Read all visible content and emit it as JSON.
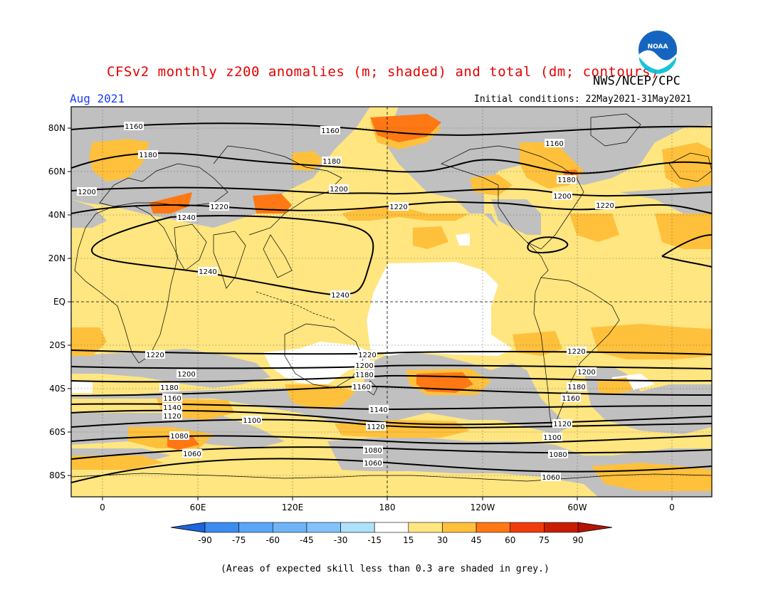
{
  "header": {
    "title": "CFSv2 monthly z200 anomalies (m; shaded) and total (dm; contours)",
    "agency": "NWS/NCEP/CPC",
    "month": "Aug 2021",
    "initial_conditions": "Initial conditions: 22May2021-31May2021"
  },
  "logo": {
    "text": "NOAA",
    "icon": "noaa-logo"
  },
  "map": {
    "projection": "equirectangular",
    "lon_range": [
      -20,
      20
    ],
    "lat_range": [
      -90,
      90
    ],
    "lat_labels": [
      "80N",
      "60N",
      "40N",
      "20N",
      "EQ",
      "20S",
      "40S",
      "60S",
      "80S"
    ],
    "lon_labels": [
      "0",
      "60E",
      "120E",
      "180",
      "120W",
      "60W",
      "0"
    ],
    "grid": true,
    "colors": {
      "grey_low_skill": "#c0c0c0",
      "white": "#ffffff",
      "yellow_15_30": "#ffe680",
      "orange_30_45": "#ffc03c",
      "orange_45_60": "#ff7814",
      "red_60_75": "#f03c0a"
    },
    "contour_labels": [
      "1160",
      "1160",
      "1160",
      "1180",
      "1180",
      "1180",
      "1200",
      "1200",
      "1200",
      "1220",
      "1220",
      "1220",
      "1240",
      "1240",
      "1240",
      "1220",
      "1220",
      "1220",
      "1200",
      "1200",
      "1200",
      "1180",
      "1180",
      "1180",
      "1160",
      "1160",
      "1160",
      "1140",
      "1140",
      "1120",
      "1120",
      "1120",
      "1100",
      "1100",
      "1080",
      "1080",
      "1080",
      "1060",
      "1060",
      "1060"
    ]
  },
  "colorbar": {
    "labels": [
      "-90",
      "-75",
      "-60",
      "-45",
      "-30",
      "-15",
      "15",
      "30",
      "45",
      "60",
      "75",
      "90"
    ],
    "colors": [
      "#1e64dc",
      "#3c8cf0",
      "#5aa5f5",
      "#82c3fa",
      "#aee1fa",
      "#d2f5ff",
      "#ffffff",
      "#ffe680",
      "#ffc03c",
      "#ff7814",
      "#f03c0a",
      "#c81e00"
    ]
  },
  "footnote": "(Areas of expected skill less than 0.3 are shaded in grey.)"
}
